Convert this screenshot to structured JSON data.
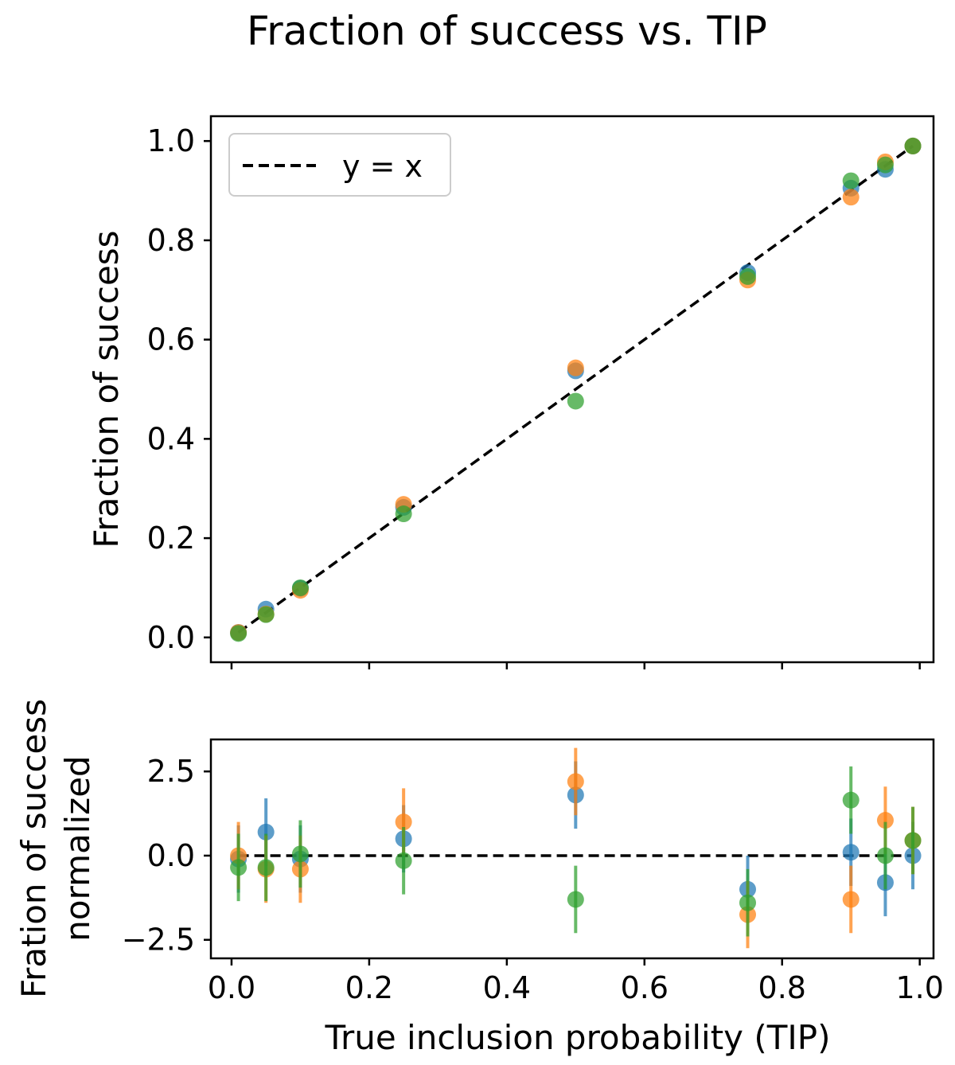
{
  "title": "Fraction of success vs. TIP",
  "xlabel": "True inclusion probability (TIP)",
  "colors": {
    "blue": "#1f77b4",
    "orange": "#ff7f0e",
    "green": "#2ca02c"
  },
  "chart_data": [
    {
      "type": "scatter",
      "ylabel": "Fraction of success",
      "xlim": [
        -0.03,
        1.02
      ],
      "ylim": [
        -0.05,
        1.05
      ],
      "xticks": [
        0.0,
        0.2,
        0.4,
        0.6,
        0.8,
        1.0
      ],
      "xtick_labels_shown": false,
      "yticks": [
        "0.0",
        "0.2",
        "0.4",
        "0.6",
        "0.8",
        "1.0"
      ],
      "grid": false,
      "legend": {
        "position": "top-left",
        "entries": [
          {
            "label": "y = x",
            "style": "dashed",
            "color": "#000000"
          }
        ]
      },
      "reference_line": {
        "label": "y = x",
        "from": [
          0.01,
          0.01
        ],
        "to": [
          0.99,
          0.99
        ]
      },
      "x": [
        0.01,
        0.05,
        0.1,
        0.25,
        0.5,
        0.75,
        0.9,
        0.95,
        0.99
      ],
      "series": [
        {
          "color": "#1f77b4",
          "values": [
            0.01,
            0.057,
            0.099,
            0.262,
            0.537,
            0.735,
            0.905,
            0.943,
            0.99
          ]
        },
        {
          "color": "#ff7f0e",
          "values": [
            0.01,
            0.047,
            0.095,
            0.268,
            0.543,
            0.72,
            0.887,
            0.958,
            0.99
          ]
        },
        {
          "color": "#2ca02c",
          "values": [
            0.008,
            0.046,
            0.1,
            0.249,
            0.476,
            0.727,
            0.92,
            0.952,
            0.99
          ]
        }
      ]
    },
    {
      "type": "scatter",
      "ylabel": [
        "Fration of success",
        "normalized"
      ],
      "xlim": [
        -0.03,
        1.02
      ],
      "ylim": [
        -3.05,
        3.45
      ],
      "xticks": [
        "0.0",
        "0.2",
        "0.4",
        "0.6",
        "0.8",
        "1.0"
      ],
      "yticks": [
        "2.5",
        "0.0",
        "−2.5"
      ],
      "ytick_values": [
        2.5,
        0.0,
        -2.5
      ],
      "grid": false,
      "reference_line": {
        "style": "dashed",
        "y": 0
      },
      "error_bar": 1.0,
      "x": [
        0.01,
        0.05,
        0.1,
        0.25,
        0.5,
        0.75,
        0.9,
        0.95,
        0.99
      ],
      "series": [
        {
          "color": "#1f77b4",
          "values": [
            -0.1,
            0.7,
            -0.1,
            0.5,
            1.8,
            -1.0,
            0.1,
            -0.8,
            0.0
          ]
        },
        {
          "color": "#ff7f0e",
          "values": [
            0.0,
            -0.4,
            -0.4,
            1.0,
            2.2,
            -1.75,
            -1.3,
            1.05,
            0.45
          ]
        },
        {
          "color": "#2ca02c",
          "values": [
            -0.35,
            -0.35,
            0.05,
            -0.15,
            -1.3,
            -1.4,
            1.65,
            0.0,
            0.45
          ]
        }
      ]
    }
  ]
}
